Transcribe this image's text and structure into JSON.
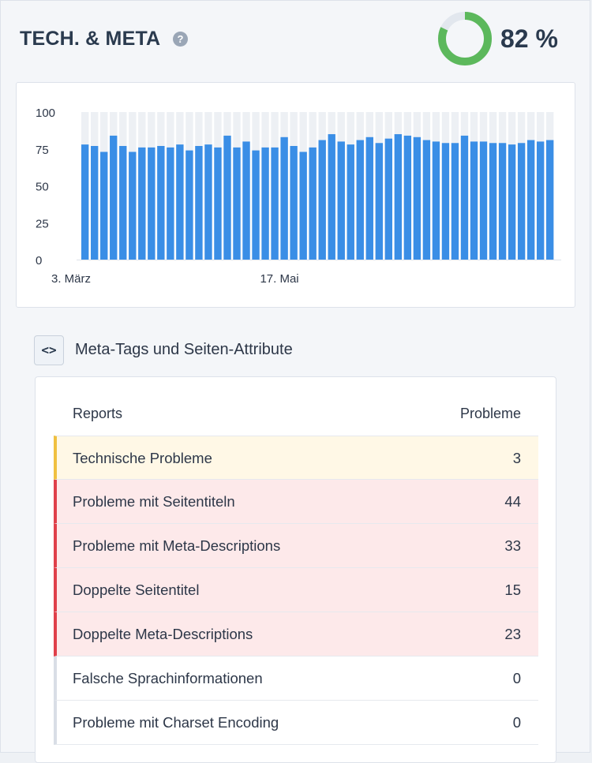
{
  "header": {
    "title": "TECH. & META",
    "help_icon": "question-circle-icon",
    "score_text": "82 %",
    "score_value": 82,
    "colors": {
      "donut_fill": "#5cb85c",
      "donut_track": "#e2e7ee"
    }
  },
  "chart_data": {
    "type": "bar",
    "title": "",
    "xlabel": "",
    "ylabel": "",
    "ylim": [
      0,
      100
    ],
    "yticks": [
      "100",
      "75",
      "50",
      "25",
      "0"
    ],
    "x_tick_labels": [
      {
        "label": "3. März",
        "index": 0
      },
      {
        "label": "17. Mai",
        "index": 22
      }
    ],
    "colors": {
      "bar": "#3a8ee6",
      "track": "#edf0f4"
    },
    "values": [
      78,
      77,
      73,
      84,
      77,
      73,
      76,
      76,
      77,
      76,
      78,
      74,
      77,
      78,
      76,
      84,
      76,
      80,
      74,
      76,
      76,
      83,
      77,
      73,
      76,
      81,
      85,
      80,
      78,
      81,
      83,
      79,
      82,
      85,
      84,
      83,
      81,
      80,
      79,
      79,
      84,
      80,
      80,
      79,
      79,
      78,
      79,
      81,
      80,
      81
    ],
    "grid": false
  },
  "section": {
    "icon": "code-brackets-icon",
    "icon_glyph": "<>",
    "title": "Meta-Tags und Seiten-Attribute"
  },
  "table": {
    "col_reports": "Reports",
    "col_problems": "Probleme",
    "rows": [
      {
        "label": "Technische Probleme",
        "value": "3",
        "status": "warning"
      },
      {
        "label": "Probleme mit Seitentiteln",
        "value": "44",
        "status": "error"
      },
      {
        "label": "Probleme mit Meta-Descriptions",
        "value": "33",
        "status": "error"
      },
      {
        "label": "Doppelte Seitentitel",
        "value": "15",
        "status": "error"
      },
      {
        "label": "Doppelte Meta-Descriptions",
        "value": "23",
        "status": "error"
      },
      {
        "label": "Falsche Sprachinformationen",
        "value": "0",
        "status": "ok"
      },
      {
        "label": "Probleme mit Charset Encoding",
        "value": "0",
        "status": "ok"
      }
    ],
    "status_colors": {
      "warning": {
        "bg": "#fff8e6",
        "border": "#f0c040"
      },
      "error": {
        "bg": "#fde9ea",
        "border": "#e0404a"
      },
      "ok": {
        "bg": "#ffffff",
        "border": "#d9dee6"
      }
    }
  }
}
